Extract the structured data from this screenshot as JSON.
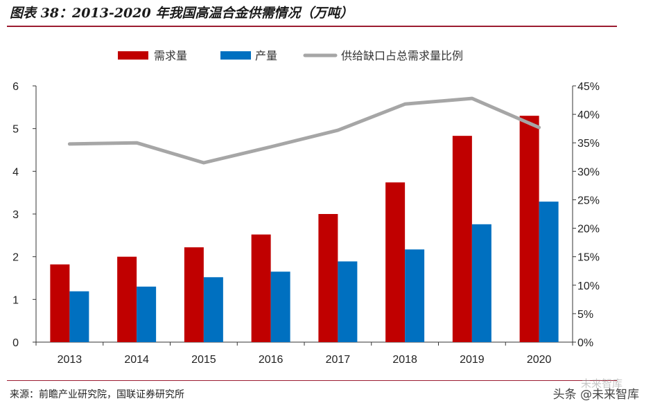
{
  "title": "图表 38：2013-2020 年我国高温合金供需情况（万吨）",
  "source": "来源：前瞻产业研究院，国联证券研究所",
  "watermark": "头条 @未来智库",
  "watermark_faint": "未来智库",
  "colors": {
    "demand": "#c00000",
    "supply": "#0070c0",
    "ratio": "#a6a6a6",
    "rule": "#9b1b30"
  },
  "chart_data": {
    "type": "bar",
    "title": "2013-2020 年我国高温合金供需情况（万吨）",
    "categories": [
      "2013",
      "2014",
      "2015",
      "2016",
      "2017",
      "2018",
      "2019",
      "2020"
    ],
    "series": [
      {
        "name": "需求量",
        "type": "bar",
        "axis": "left",
        "values": [
          1.82,
          2.0,
          2.22,
          2.52,
          3.0,
          3.74,
          4.83,
          5.3
        ]
      },
      {
        "name": "产量",
        "type": "bar",
        "axis": "left",
        "values": [
          1.19,
          1.3,
          1.52,
          1.65,
          1.89,
          2.17,
          2.76,
          3.29
        ]
      },
      {
        "name": "供给缺口占总需求量比例",
        "type": "line",
        "axis": "right",
        "values": [
          34.8,
          35.0,
          31.5,
          34.3,
          37.2,
          41.8,
          42.8,
          37.7
        ]
      }
    ],
    "ylim_left": [
      0,
      6
    ],
    "yticks_left": [
      "0",
      "1",
      "2",
      "3",
      "4",
      "5",
      "6"
    ],
    "ylim_right": [
      0,
      45
    ],
    "yticks_right": [
      "0%",
      "5%",
      "10%",
      "15%",
      "20%",
      "25%",
      "30%",
      "35%",
      "40%",
      "45%"
    ],
    "legend": "top"
  }
}
